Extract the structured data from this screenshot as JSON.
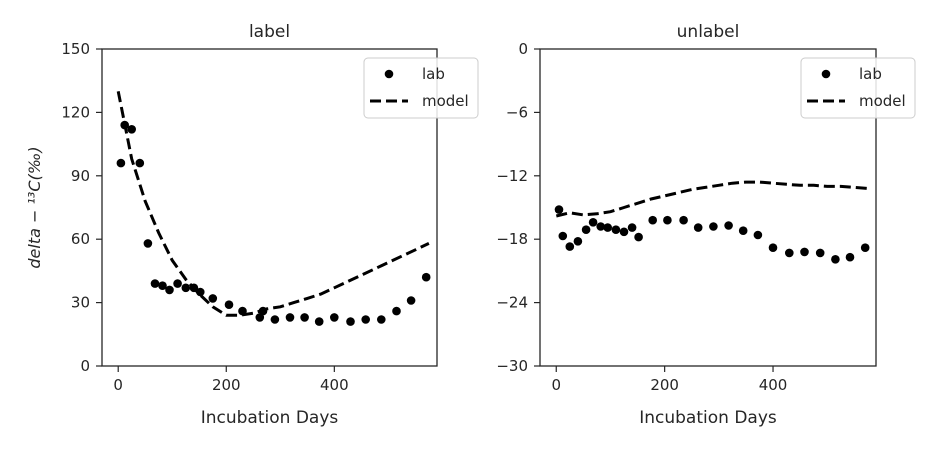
{
  "chart_data": [
    {
      "type": "scatter",
      "title": "label",
      "xlabel": "Incubation Days",
      "ylabel": "delta − ¹³C(‰)",
      "xlim": [
        -30,
        590
      ],
      "ylim": [
        0,
        150
      ],
      "xticks": [
        "0",
        "200",
        "400"
      ],
      "xtick_values": [
        0,
        200,
        400
      ],
      "yticks": [
        "0",
        "30",
        "60",
        "90",
        "120",
        "150"
      ],
      "ytick_values": [
        0,
        30,
        60,
        90,
        120,
        150
      ],
      "legend_position": "top-right",
      "series": [
        {
          "name": "lab",
          "kind": "scatter",
          "color": "#000000",
          "x": [
            5,
            12,
            25,
            40,
            55,
            68,
            82,
            95,
            110,
            125,
            140,
            152,
            175,
            205,
            230,
            262,
            268,
            290,
            318,
            345,
            372,
            400,
            430,
            458,
            487,
            515,
            542,
            570
          ],
          "y": [
            96,
            114,
            112,
            96,
            58,
            39,
            38,
            36,
            39,
            37,
            37,
            35,
            32,
            29,
            26,
            23,
            26,
            22,
            23,
            23,
            21,
            23,
            21,
            22,
            22,
            26,
            31,
            42
          ]
        },
        {
          "name": "model",
          "kind": "line",
          "style": "dashed",
          "color": "#000000",
          "x": [
            0,
            25,
            50,
            75,
            100,
            125,
            150,
            175,
            200,
            225,
            250,
            275,
            300,
            325,
            350,
            375,
            400,
            425,
            450,
            475,
            500,
            525,
            550,
            575
          ],
          "y": [
            130,
            98,
            78,
            63,
            50,
            41,
            34,
            28,
            24,
            24,
            25,
            27,
            28,
            30,
            32,
            34,
            37,
            40,
            43,
            46,
            49,
            52,
            55,
            58
          ]
        }
      ]
    },
    {
      "type": "scatter",
      "title": "unlabel",
      "xlabel": "Incubation Days",
      "ylabel": "",
      "xlim": [
        -30,
        590
      ],
      "ylim": [
        -30,
        0
      ],
      "xticks": [
        "0",
        "200",
        "400"
      ],
      "xtick_values": [
        0,
        200,
        400
      ],
      "yticks": [
        "−30",
        "−24",
        "−18",
        "−12",
        "−6",
        "0"
      ],
      "ytick_values": [
        -30,
        -24,
        -18,
        -12,
        -6,
        0
      ],
      "legend_position": "top-right",
      "series": [
        {
          "name": "lab",
          "kind": "scatter",
          "color": "#000000",
          "x": [
            5,
            12,
            25,
            40,
            55,
            68,
            82,
            95,
            110,
            125,
            140,
            152,
            178,
            205,
            235,
            262,
            290,
            318,
            345,
            372,
            400,
            430,
            458,
            487,
            515,
            542,
            570
          ],
          "y": [
            -15.2,
            -17.7,
            -18.7,
            -18.2,
            -17.1,
            -16.4,
            -16.8,
            -16.9,
            -17.1,
            -17.3,
            -16.9,
            -17.8,
            -16.2,
            -16.2,
            -16.2,
            -16.9,
            -16.8,
            -16.7,
            -17.2,
            -17.6,
            -18.8,
            -19.3,
            -19.2,
            -19.3,
            -19.9,
            -19.7,
            -18.8
          ]
        },
        {
          "name": "model",
          "kind": "line",
          "style": "dashed",
          "color": "#000000",
          "x": [
            0,
            25,
            50,
            75,
            100,
            125,
            150,
            175,
            200,
            225,
            250,
            275,
            300,
            325,
            350,
            375,
            400,
            425,
            450,
            475,
            500,
            525,
            550,
            575
          ],
          "y": [
            -15.8,
            -15.5,
            -15.7,
            -15.6,
            -15.4,
            -15.0,
            -14.6,
            -14.2,
            -13.9,
            -13.6,
            -13.3,
            -13.1,
            -12.9,
            -12.7,
            -12.6,
            -12.6,
            -12.7,
            -12.8,
            -12.9,
            -12.9,
            -13.0,
            -13.0,
            -13.1,
            -13.2
          ]
        }
      ]
    }
  ]
}
